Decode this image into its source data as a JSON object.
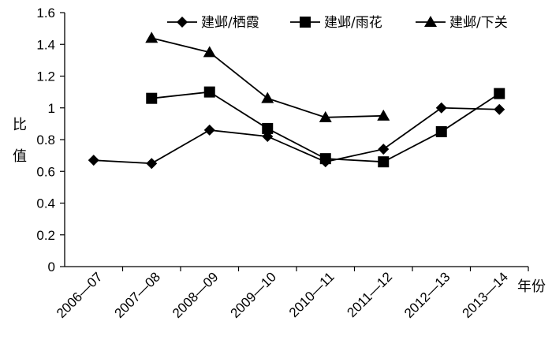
{
  "chart_data": {
    "type": "line",
    "title": "",
    "xlabel": "年份",
    "ylabel": "比值",
    "ylim": [
      0,
      1.6
    ],
    "yticks": [
      "0",
      "0.2",
      "0.4",
      "0.6",
      "0.8",
      "1",
      "1.2",
      "1.4",
      "1.6"
    ],
    "categories": [
      "2006—07",
      "2007—08",
      "2008—09",
      "2009—10",
      "2010—11",
      "2011—12",
      "2012—13",
      "2013—14"
    ],
    "legend_position": "top-right",
    "grid": false,
    "series": [
      {
        "name": "建邺/栖霞",
        "marker": "diamond",
        "values": [
          0.67,
          0.65,
          0.86,
          0.82,
          0.66,
          0.74,
          1.0,
          0.99
        ]
      },
      {
        "name": "建邺/雨花",
        "marker": "square",
        "values": [
          null,
          1.06,
          1.1,
          0.87,
          0.68,
          0.66,
          0.85,
          1.09
        ]
      },
      {
        "name": "建邺/下关",
        "marker": "triangle",
        "values": [
          null,
          1.44,
          1.35,
          1.06,
          0.94,
          0.95,
          null,
          null
        ]
      }
    ]
  }
}
